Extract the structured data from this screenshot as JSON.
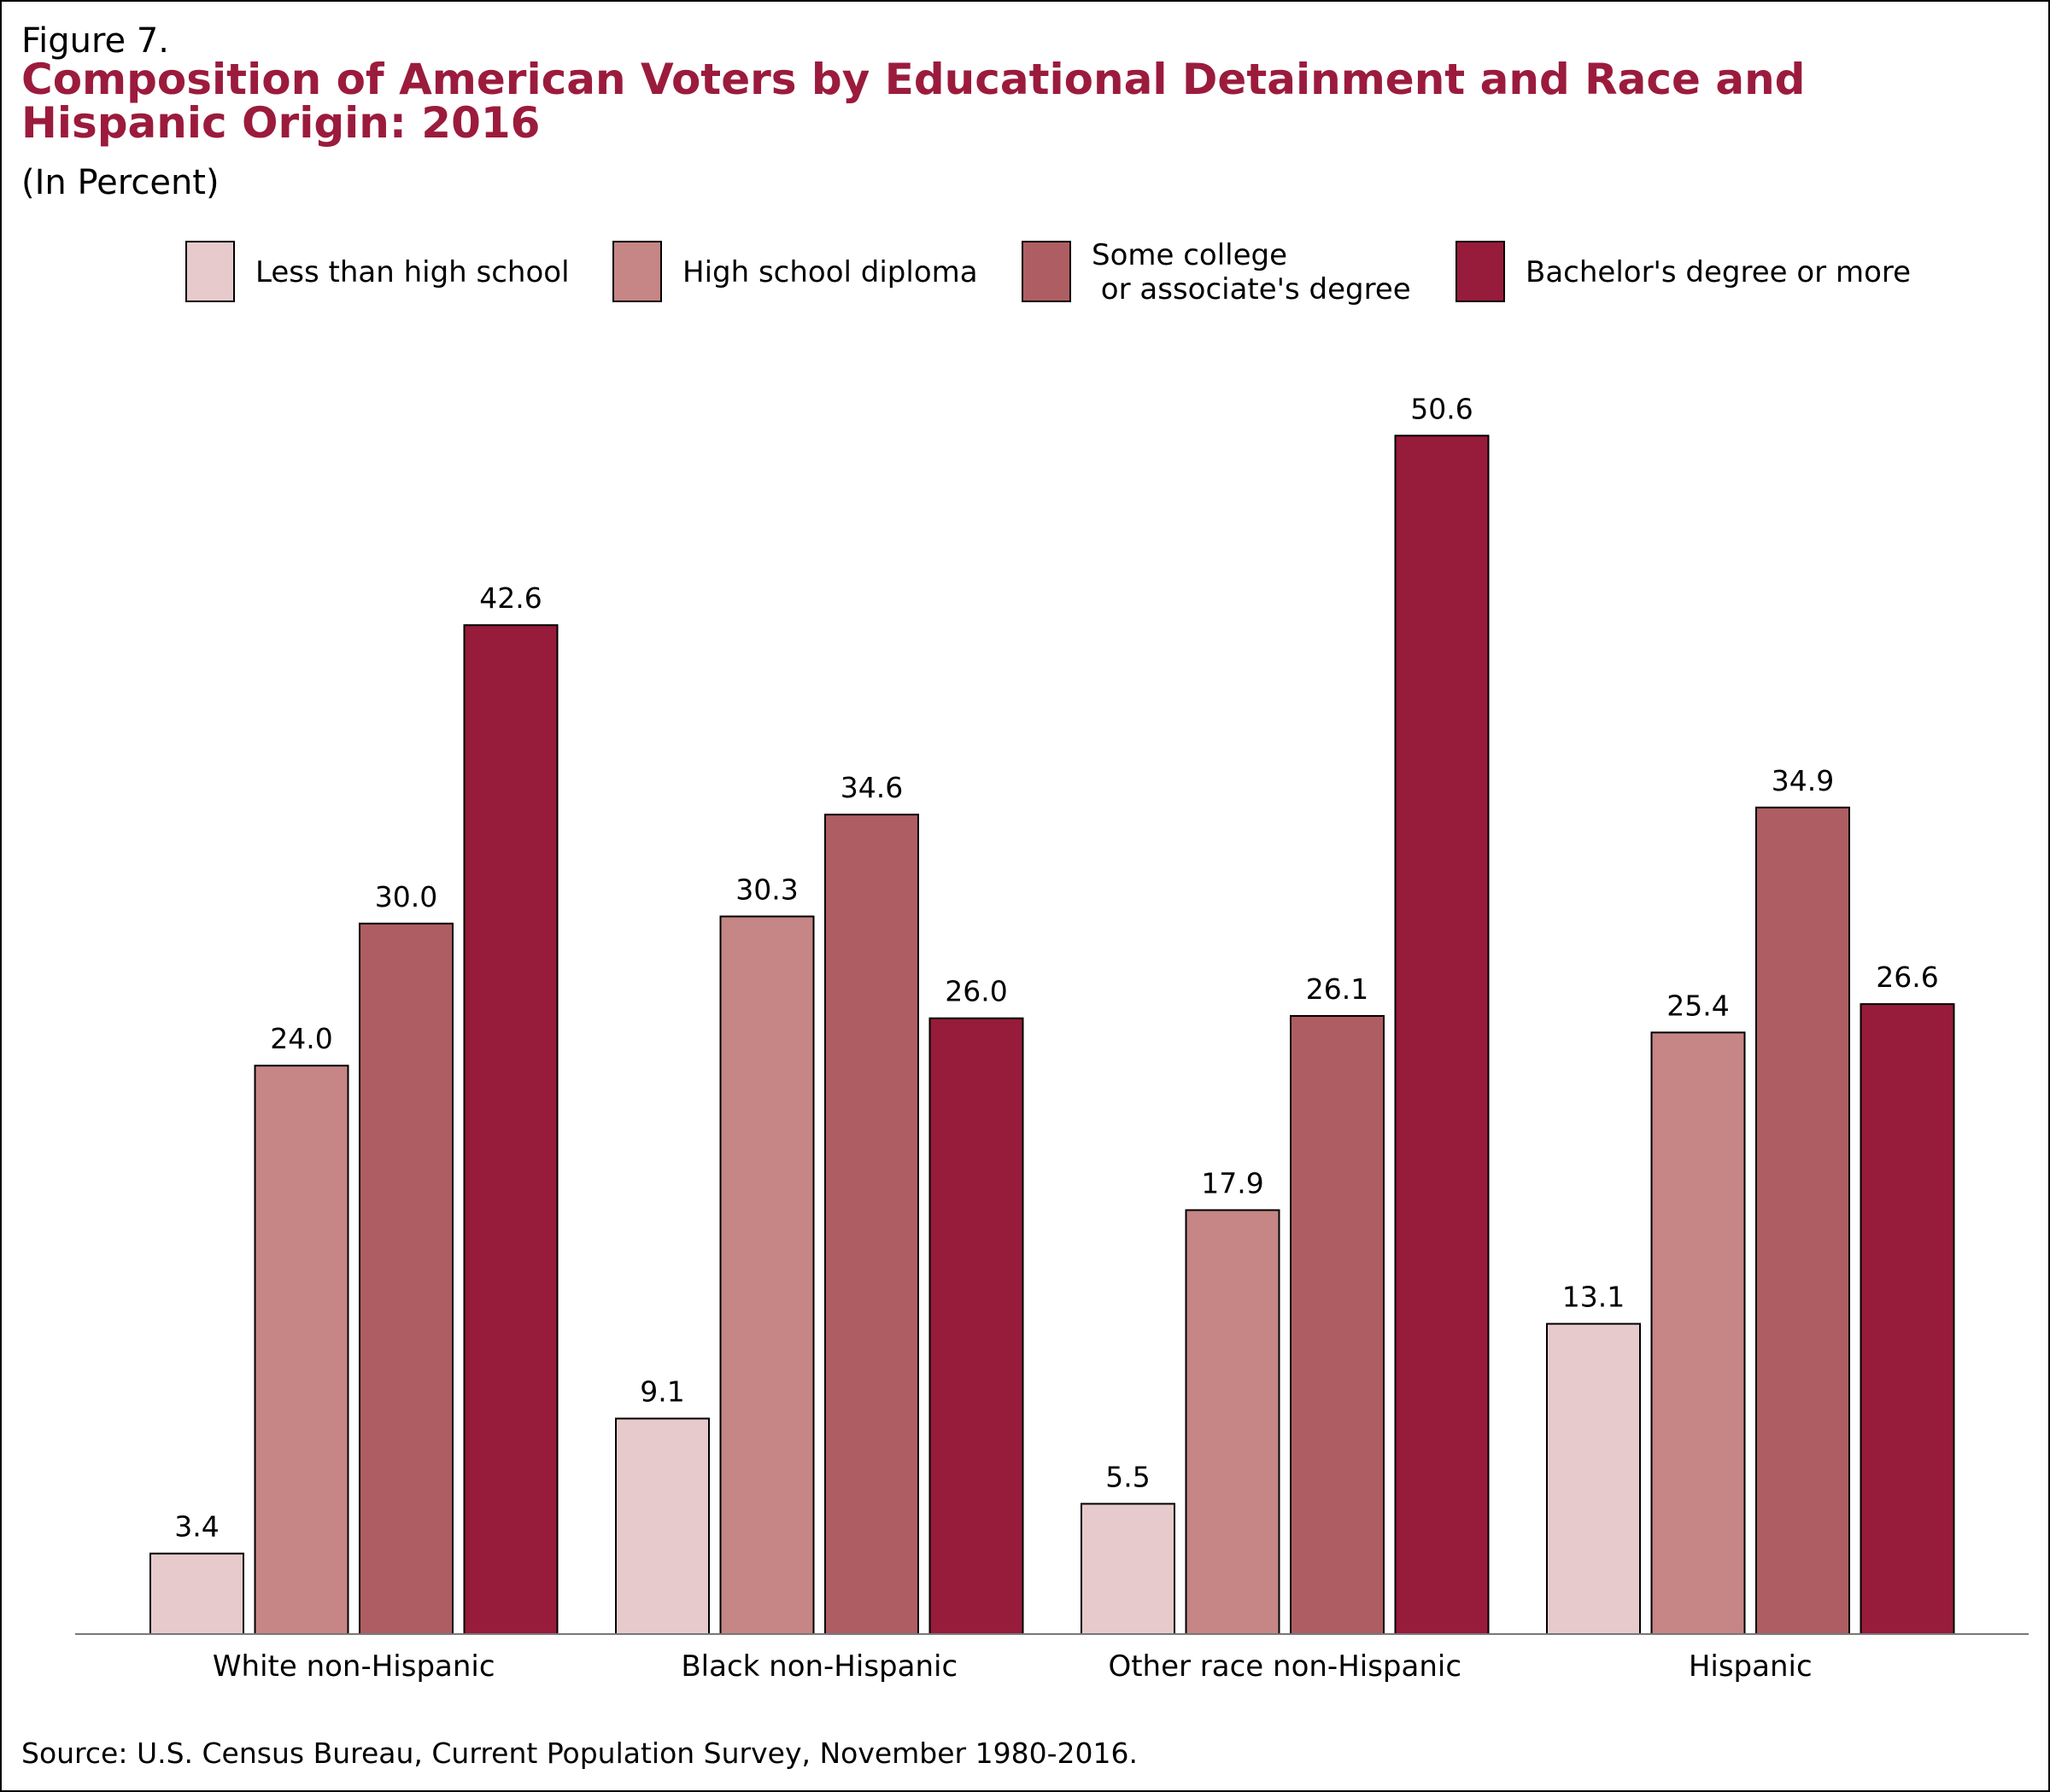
{
  "figure_label": "Figure 7.",
  "title": "Composition of American Voters by Educational Detainment and Race and Hispanic Origin: 2016",
  "subtitle": "(In Percent)",
  "source": "Source: U.S. Census Bureau, Current Population Survey, November 1980-2016.",
  "chart_data": {
    "type": "bar",
    "title": "Composition of American Voters by Educational Detainment and Race and Hispanic Origin: 2016",
    "subtitle": "(In Percent)",
    "xlabel": "",
    "ylabel": "",
    "ylim": [
      0,
      58
    ],
    "grid": false,
    "legend_position": "top",
    "categories": [
      "White non-Hispanic",
      "Black non-Hispanic",
      "Other race non-Hispanic",
      "Hispanic"
    ],
    "series": [
      {
        "name": "Less than high school",
        "legend_lines": [
          "Less than high school"
        ],
        "color": "#e6cacc",
        "values": [
          3.4,
          9.1,
          5.5,
          13.1
        ],
        "labels": [
          "3.4",
          "9.1",
          "5.5",
          "13.1"
        ]
      },
      {
        "name": "High school diploma",
        "legend_lines": [
          "High school diploma"
        ],
        "color": "#c58685",
        "values": [
          24.0,
          30.3,
          17.9,
          25.4
        ],
        "labels": [
          "24.0",
          "30.3",
          "17.9",
          "25.4"
        ]
      },
      {
        "name": "Some college or associate's degree",
        "legend_lines": [
          "Some college",
          " or associate's degree"
        ],
        "color": "#ae5e62",
        "values": [
          30.0,
          34.6,
          26.1,
          34.9
        ],
        "labels": [
          "30.0",
          "34.6",
          "26.1",
          "34.9"
        ]
      },
      {
        "name": "Bachelor's degree or more",
        "legend_lines": [
          "Bachelor's degree or more"
        ],
        "color": "#971b3a",
        "values": [
          42.6,
          26.0,
          50.6,
          26.6
        ],
        "labels": [
          "42.6",
          "26.0",
          "50.6",
          "26.6"
        ]
      }
    ]
  }
}
